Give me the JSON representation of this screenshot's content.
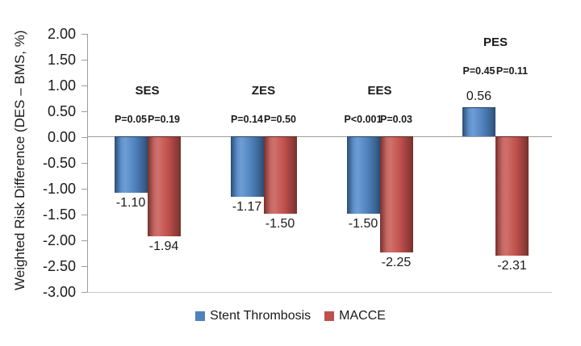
{
  "chart_data": {
    "type": "bar",
    "title": "",
    "ylabel": "Weighted Risk Difference (DES – BMS, %)",
    "xlabel": "",
    "ylim": [
      -3.0,
      2.0
    ],
    "ytick_step": 0.5,
    "yticks": [
      "2.00",
      "1.50",
      "1.00",
      "0.50",
      "0.00",
      "-0.50",
      "-1.00",
      "-1.50",
      "-2.00",
      "-2.50",
      "-3.00"
    ],
    "grid": false,
    "legend_position": "bottom",
    "categories": [
      "SES",
      "ZES",
      "EES",
      "PES"
    ],
    "series": [
      {
        "name": "Stent Thrombosis",
        "color": "#4F81BD",
        "values": [
          -1.1,
          -1.17,
          -1.5,
          0.56
        ],
        "value_labels": [
          "-1.10",
          "-1.17",
          "-1.50",
          "0.56"
        ],
        "p_values": [
          "P=0.05",
          "P=0.14",
          "P<0.001",
          "P=0.45"
        ]
      },
      {
        "name": "MACCE",
        "color": "#C0504D",
        "values": [
          -1.94,
          -1.5,
          -2.25,
          -2.31
        ],
        "value_labels": [
          "-1.94",
          "-1.50",
          "-2.25",
          "-2.31"
        ],
        "p_values": [
          "P=0.19",
          "P=0.50",
          "P=0.03",
          "P=0.11"
        ]
      }
    ]
  },
  "legend": {
    "items": [
      {
        "label": "Stent Thrombosis",
        "color": "#4F81BD"
      },
      {
        "label": "MACCE",
        "color": "#C0504D"
      }
    ]
  },
  "colors": {
    "axis_line": "#9C9C9C",
    "baseline": "#C9C9C9",
    "text": "#1A1A1A",
    "background": "#FFFFFF"
  }
}
